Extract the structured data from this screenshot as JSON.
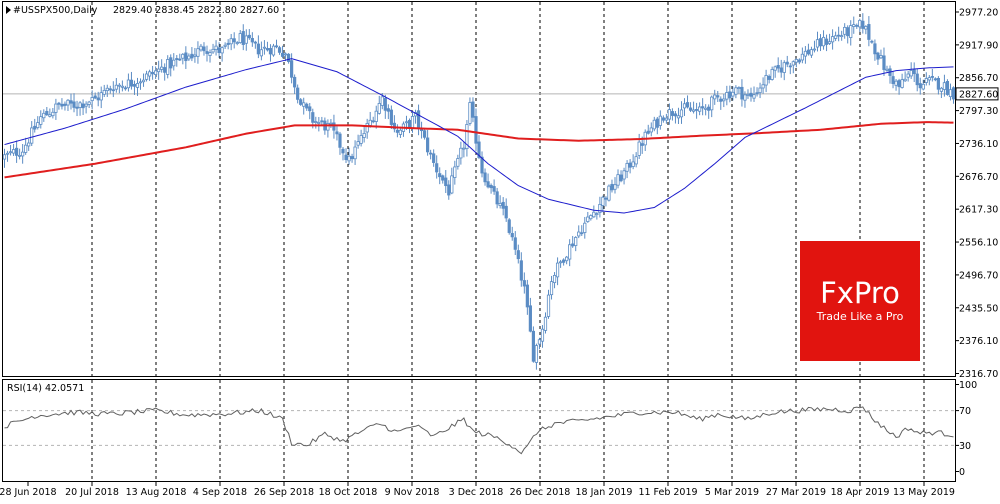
{
  "header": {
    "symbol_info": "#USSPX500,Daily",
    "ohlc": "2829.40 2838.45 2822.80 2827.60"
  },
  "rsi_panel": {
    "label": "RSI(14) 42.0571",
    "levels": [
      70,
      30
    ],
    "ylim": [
      0,
      100
    ],
    "axis_ticks": [
      "100",
      "70",
      "30",
      "0"
    ]
  },
  "current_price_label": "2827.60",
  "watermark": {
    "brand": "FxPro",
    "tagline": "Trade Like a Pro",
    "color": "#e1140f"
  },
  "colors": {
    "candle": "#5b8cc4",
    "ma_fast": "#1c1ccc",
    "ma_slow": "#e01e1e",
    "rsi_line": "#606060",
    "grid": "#000000",
    "current_price_line": "#b4b4b4",
    "rsi_level": "#b4b4b4"
  },
  "chart_data": {
    "type": "candlestick",
    "title": "#USSPX500,Daily",
    "ylim": [
      2316.7,
      2977.2
    ],
    "y_ticks": [
      "2977.20",
      "2917.90",
      "2856.70",
      "2797.30",
      "2736.10",
      "2676.70",
      "2617.30",
      "2556.10",
      "2496.70",
      "2435.50",
      "2376.10",
      "2316.70"
    ],
    "x_ticks": [
      "28 Jun 2018",
      "20 Jul 2018",
      "13 Aug 2018",
      "4 Sep 2018",
      "26 Sep 2018",
      "18 Oct 2018",
      "9 Nov 2018",
      "3 Dec 2018",
      "26 Dec 2018",
      "18 Jan 2019",
      "11 Feb 2019",
      "5 Mar 2019",
      "27 Mar 2019",
      "18 Apr 2019",
      "13 May 2019"
    ],
    "close_anchors": [
      [
        0,
        2713
      ],
      [
        6,
        2726
      ],
      [
        12,
        2784
      ],
      [
        18,
        2806
      ],
      [
        24,
        2808
      ],
      [
        30,
        2818
      ],
      [
        36,
        2842
      ],
      [
        42,
        2848
      ],
      [
        48,
        2862
      ],
      [
        54,
        2880
      ],
      [
        60,
        2893
      ],
      [
        66,
        2912
      ],
      [
        72,
        2906
      ],
      [
        78,
        2930
      ],
      [
        84,
        2909
      ],
      [
        90,
        2912
      ],
      [
        93,
        2901
      ],
      [
        98,
        2810
      ],
      [
        102,
        2780
      ],
      [
        108,
        2764
      ],
      [
        114,
        2705
      ],
      [
        120,
        2767
      ],
      [
        125,
        2820
      ],
      [
        130,
        2755
      ],
      [
        136,
        2785
      ],
      [
        142,
        2700
      ],
      [
        147,
        2650
      ],
      [
        152,
        2735
      ],
      [
        154,
        2803
      ],
      [
        158,
        2688
      ],
      [
        162,
        2640
      ],
      [
        166,
        2600
      ],
      [
        169,
        2540
      ],
      [
        172,
        2470
      ],
      [
        175,
        2350
      ],
      [
        178,
        2400
      ],
      [
        181,
        2490
      ],
      [
        185,
        2530
      ],
      [
        190,
        2575
      ],
      [
        195,
        2612
      ],
      [
        200,
        2650
      ],
      [
        206,
        2690
      ],
      [
        212,
        2750
      ],
      [
        218,
        2790
      ],
      [
        224,
        2800
      ],
      [
        230,
        2795
      ],
      [
        236,
        2820
      ],
      [
        242,
        2835
      ],
      [
        247,
        2820
      ],
      [
        252,
        2855
      ],
      [
        258,
        2880
      ],
      [
        264,
        2898
      ],
      [
        270,
        2920
      ],
      [
        276,
        2935
      ],
      [
        281,
        2945
      ],
      [
        284,
        2955
      ],
      [
        288,
        2910
      ],
      [
        292,
        2867
      ],
      [
        296,
        2840
      ],
      [
        300,
        2868
      ],
      [
        303,
        2843
      ],
      [
        306,
        2850
      ],
      [
        310,
        2845
      ],
      [
        314,
        2828
      ]
    ],
    "series": [
      {
        "name": "",
        "type": "line",
        "points": [
          [
            0,
            2735
          ],
          [
            20,
            2765
          ],
          [
            40,
            2800
          ],
          [
            60,
            2840
          ],
          [
            80,
            2872
          ],
          [
            95,
            2892
          ],
          [
            110,
            2868
          ],
          [
            125,
            2825
          ],
          [
            140,
            2780
          ],
          [
            150,
            2750
          ],
          [
            160,
            2700
          ],
          [
            170,
            2660
          ],
          [
            180,
            2635
          ],
          [
            195,
            2615
          ],
          [
            205,
            2610
          ],
          [
            215,
            2620
          ],
          [
            225,
            2655
          ],
          [
            235,
            2700
          ],
          [
            245,
            2748
          ],
          [
            255,
            2775
          ],
          [
            265,
            2802
          ],
          [
            275,
            2830
          ],
          [
            285,
            2858
          ],
          [
            295,
            2870
          ],
          [
            305,
            2875
          ],
          [
            314,
            2877
          ]
        ]
      },
      {
        "name": "",
        "type": "line",
        "points": [
          [
            0,
            2675
          ],
          [
            30,
            2700
          ],
          [
            60,
            2730
          ],
          [
            80,
            2755
          ],
          [
            96,
            2770
          ],
          [
            115,
            2770
          ],
          [
            135,
            2765
          ],
          [
            150,
            2762
          ],
          [
            170,
            2746
          ],
          [
            190,
            2742
          ],
          [
            210,
            2745
          ],
          [
            230,
            2751
          ],
          [
            250,
            2756
          ],
          [
            270,
            2762
          ],
          [
            290,
            2773
          ],
          [
            305,
            2776
          ],
          [
            314,
            2775
          ]
        ]
      }
    ],
    "rsi": {
      "ylim": [
        0,
        100
      ],
      "points": [
        [
          0,
          52
        ],
        [
          10,
          64
        ],
        [
          22,
          68
        ],
        [
          35,
          66
        ],
        [
          50,
          70
        ],
        [
          60,
          65
        ],
        [
          72,
          66
        ],
        [
          85,
          70
        ],
        [
          92,
          60
        ],
        [
          95,
          33
        ],
        [
          100,
          30
        ],
        [
          106,
          43
        ],
        [
          112,
          35
        ],
        [
          118,
          46
        ],
        [
          124,
          55
        ],
        [
          130,
          45
        ],
        [
          136,
          53
        ],
        [
          142,
          40
        ],
        [
          148,
          52
        ],
        [
          152,
          60
        ],
        [
          155,
          46
        ],
        [
          162,
          40
        ],
        [
          167,
          32
        ],
        [
          171,
          22
        ],
        [
          173,
          28
        ],
        [
          176,
          45
        ],
        [
          182,
          55
        ],
        [
          190,
          58
        ],
        [
          200,
          63
        ],
        [
          210,
          68
        ],
        [
          222,
          68
        ],
        [
          230,
          60
        ],
        [
          236,
          66
        ],
        [
          246,
          60
        ],
        [
          254,
          68
        ],
        [
          262,
          70
        ],
        [
          272,
          72
        ],
        [
          280,
          70
        ],
        [
          284,
          75
        ],
        [
          287,
          62
        ],
        [
          291,
          50
        ],
        [
          295,
          40
        ],
        [
          299,
          50
        ],
        [
          303,
          44
        ],
        [
          308,
          45
        ],
        [
          314,
          42
        ]
      ]
    }
  }
}
